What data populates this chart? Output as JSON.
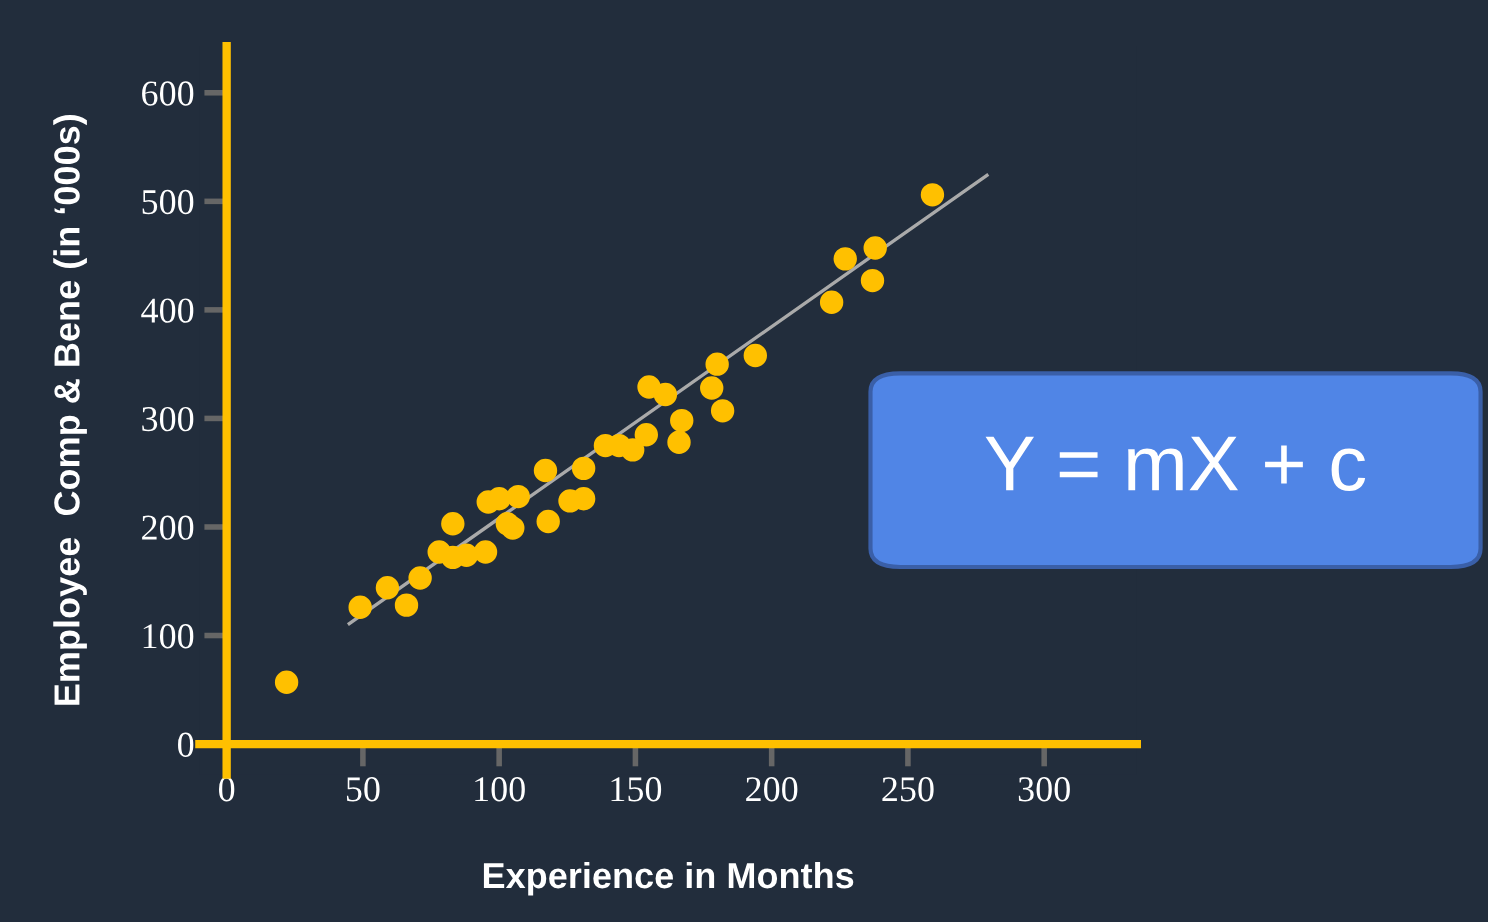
{
  "chart_data": {
    "type": "scatter",
    "xlabel": "Experience in Months",
    "ylabel": "Employee  Comp & Bene (in ‘000s)",
    "annotations": [
      "Y = mX + c"
    ],
    "xlim": [
      -10,
      334
    ],
    "ylim": [
      -28,
      643
    ],
    "xticks": [
      0,
      50,
      100,
      150,
      200,
      250,
      300
    ],
    "yticks": [
      0,
      100,
      200,
      300,
      400,
      500,
      600
    ],
    "grid": false,
    "series": [
      {
        "marker": "circle",
        "color": "#ffc000",
        "x": [
          22,
          49,
          59,
          66,
          71,
          78,
          83,
          83,
          88,
          95,
          96,
          100,
          107,
          103,
          105,
          117,
          118,
          126,
          131,
          131,
          139,
          144,
          149,
          154,
          155,
          161,
          166,
          167,
          178,
          180,
          182,
          194,
          222,
          227,
          237,
          238,
          259
        ],
        "values": [
          57,
          126,
          144,
          128,
          153,
          177,
          172,
          203,
          174,
          177,
          223,
          226,
          228,
          203,
          199,
          252,
          205,
          224,
          226,
          254,
          275,
          275,
          271,
          285,
          329,
          322,
          278,
          298,
          328,
          350,
          307,
          358,
          407,
          447,
          427,
          457,
          506
        ]
      },
      {
        "type": "line",
        "color": "#aaaaaa",
        "x": [
          45,
          279
        ],
        "values": [
          111,
          524
        ],
        "line_style": "solid"
      }
    ]
  }
}
